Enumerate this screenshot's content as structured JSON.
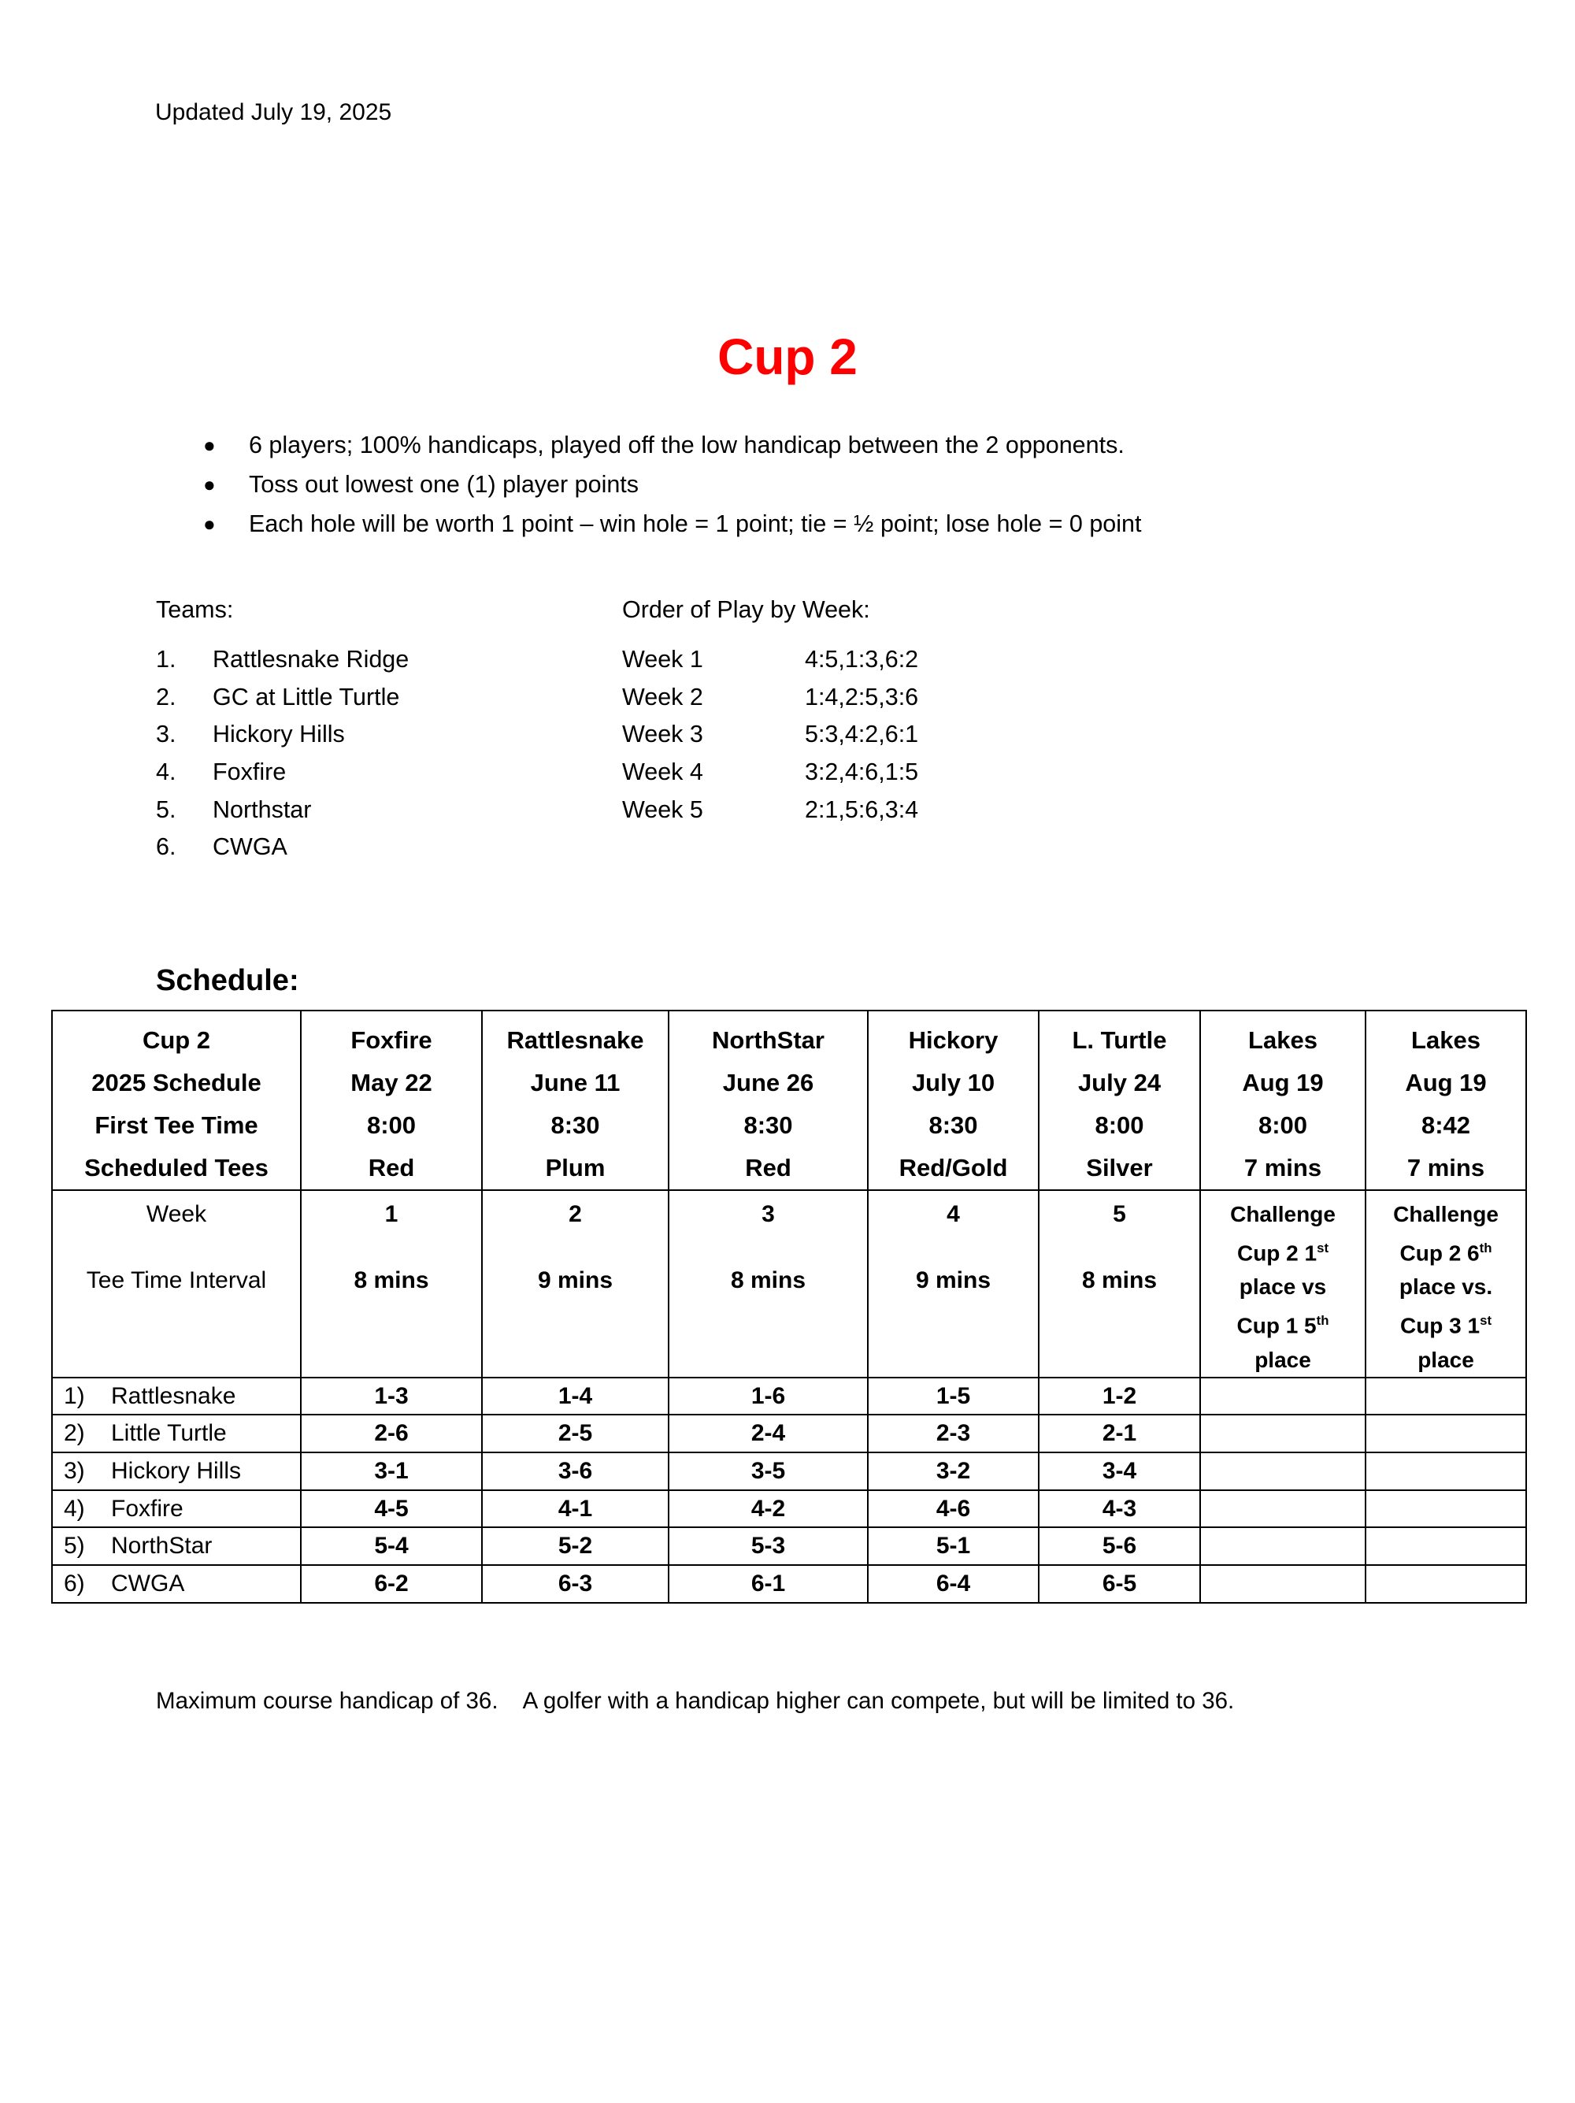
{
  "page": {
    "updated": "Updated July 19, 2025",
    "title": "Cup 2",
    "title_color": "#FF0000",
    "bullets": [
      "6 players; 100% handicaps, played off the low handicap between the 2 opponents.",
      "Toss out lowest one (1) player points",
      "Each hole will be worth 1 point – win hole = 1 point; tie = ½ point; lose hole = 0 point"
    ],
    "teams": {
      "heading": "Teams:",
      "items": [
        "Rattlesnake Ridge",
        "GC at Little Turtle",
        "Hickory Hills",
        "Foxfire",
        "Northstar",
        "CWGA"
      ]
    },
    "order_of_play": {
      "heading": "Order of Play by Week:",
      "weeks": [
        {
          "label": "Week 1",
          "order": "4:5,1:3,6:2"
        },
        {
          "label": "Week 2",
          "order": "1:4,2:5,3:6"
        },
        {
          "label": "Week 3",
          "order": "5:3,4:2,6:1"
        },
        {
          "label": "Week 4",
          "order": "3:2,4:6,1:5"
        },
        {
          "label": "Week 5",
          "order": "2:1,5:6,3:4"
        }
      ]
    },
    "schedule_heading": "Schedule:",
    "note": "Maximum course handicap of 36.    A golfer with a handicap higher can compete, but will be limited to 36."
  },
  "schedule_table": {
    "corner_lines": [
      "Cup 2",
      "2025 Schedule",
      "First Tee Time",
      "Scheduled Tees"
    ],
    "week_row_label": "Week",
    "interval_row_label": "Tee Time Interval",
    "venues": [
      {
        "name": "Foxfire",
        "date": "May 22",
        "time": "8:00",
        "tees": "Red",
        "week": "1",
        "interval": "8 mins"
      },
      {
        "name": "Rattlesnake",
        "date": "June 11",
        "time": "8:30",
        "tees": "Plum",
        "week": "2",
        "interval": "9 mins"
      },
      {
        "name": "NorthStar",
        "date": "June 26",
        "time": "8:30",
        "tees": "Red",
        "week": "3",
        "interval": "8 mins"
      },
      {
        "name": "Hickory",
        "date": "July 10",
        "time": "8:30",
        "tees": "Red/Gold",
        "week": "4",
        "interval": "9 mins"
      },
      {
        "name": "L. Turtle",
        "date": "July 24",
        "time": "8:00",
        "tees": "Silver",
        "week": "5",
        "interval": "8 mins"
      },
      {
        "name": "Lakes",
        "date": "Aug 19",
        "time": "8:00",
        "tees": "7 mins",
        "challenge": [
          "Challenge",
          "Cup 2 1^st",
          "place vs",
          "Cup 1 5^th",
          "place"
        ]
      },
      {
        "name": "Lakes",
        "date": "Aug 19",
        "time": "8:42",
        "tees": "7 mins",
        "challenge": [
          "Challenge",
          "Cup 2 6^th",
          "place vs.",
          "Cup 3 1^st",
          "place"
        ]
      }
    ],
    "rows": [
      {
        "num": "1)",
        "team": "Rattlesnake",
        "matches": [
          "1-3",
          "1-4",
          "1-6",
          "1-5",
          "1-2",
          "",
          ""
        ]
      },
      {
        "num": "2)",
        "team": "Little Turtle",
        "matches": [
          "2-6",
          "2-5",
          "2-4",
          "2-3",
          "2-1",
          "",
          ""
        ]
      },
      {
        "num": "3)",
        "team": "Hickory Hills",
        "matches": [
          "3-1",
          "3-6",
          "3-5",
          "3-2",
          "3-4",
          "",
          ""
        ]
      },
      {
        "num": "4)",
        "team": "Foxfire",
        "matches": [
          "4-5",
          "4-1",
          "4-2",
          "4-6",
          "4-3",
          "",
          ""
        ]
      },
      {
        "num": "5)",
        "team": "NorthStar",
        "matches": [
          "5-4",
          "5-2",
          "5-3",
          "5-1",
          "5-6",
          "",
          ""
        ]
      },
      {
        "num": "6)",
        "team": "CWGA",
        "matches": [
          "6-2",
          "6-3",
          "6-1",
          "6-4",
          "6-5",
          "",
          ""
        ]
      }
    ]
  }
}
